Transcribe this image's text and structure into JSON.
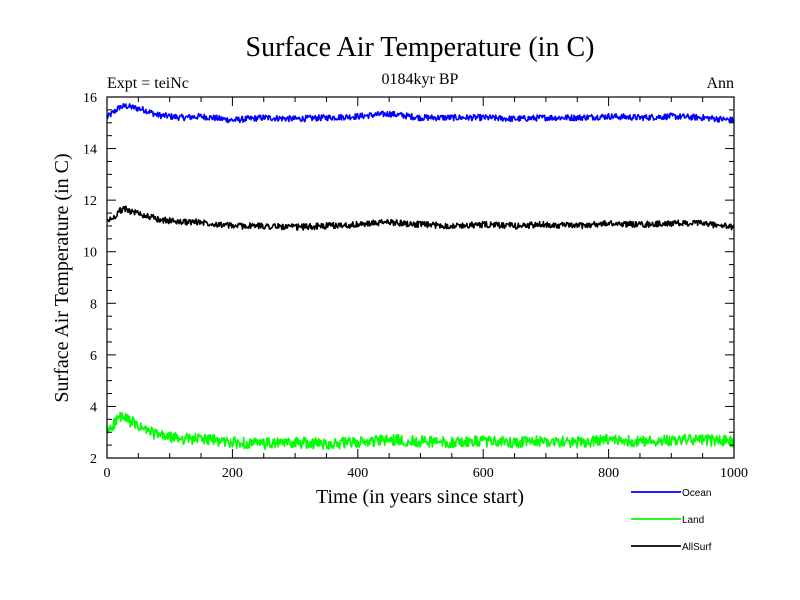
{
  "chart_data": {
    "type": "line",
    "title": "Surface Air Temperature (in C)",
    "subtitle": "0184kyr BP",
    "top_left_label": "Expt = teiNc",
    "top_right_label": "Ann",
    "xlabel": "Time (in years since start)",
    "ylabel": "Surface Air Temperature (in C)",
    "xlim": [
      0,
      1000
    ],
    "ylim": [
      2,
      16
    ],
    "x_major_ticks": [
      0,
      200,
      400,
      600,
      800,
      1000
    ],
    "x_tick_labels": [
      "0",
      "200",
      "400",
      "600",
      "800",
      "1000"
    ],
    "y_major_ticks": [
      2,
      4,
      6,
      8,
      10,
      12,
      14,
      16
    ],
    "y_tick_labels": [
      "2",
      "4",
      "6",
      "8",
      "10",
      "12",
      "14",
      "16"
    ],
    "grid": false,
    "legend_position": "bottom-right, below plot",
    "series": [
      {
        "name": "Ocean",
        "color": "#0000ff",
        "x": [
          0,
          10,
          20,
          30,
          40,
          50,
          60,
          70,
          80,
          100,
          120,
          150,
          200,
          250,
          300,
          350,
          400,
          450,
          500,
          550,
          600,
          650,
          700,
          750,
          800,
          850,
          900,
          950,
          1000
        ],
        "y": [
          15.2,
          15.4,
          15.6,
          15.65,
          15.6,
          15.55,
          15.5,
          15.4,
          15.3,
          15.25,
          15.2,
          15.25,
          15.1,
          15.2,
          15.15,
          15.2,
          15.25,
          15.35,
          15.2,
          15.2,
          15.2,
          15.15,
          15.2,
          15.2,
          15.25,
          15.2,
          15.25,
          15.2,
          15.1
        ]
      },
      {
        "name": "Land",
        "color": "#00ff00",
        "x": [
          0,
          10,
          20,
          30,
          40,
          50,
          60,
          70,
          80,
          100,
          120,
          150,
          200,
          250,
          300,
          350,
          400,
          450,
          500,
          550,
          600,
          650,
          700,
          750,
          800,
          850,
          900,
          950,
          1000
        ],
        "y": [
          3.0,
          3.3,
          3.6,
          3.5,
          3.4,
          3.2,
          3.1,
          3.0,
          2.9,
          2.8,
          2.75,
          2.75,
          2.6,
          2.55,
          2.6,
          2.55,
          2.6,
          2.7,
          2.65,
          2.6,
          2.65,
          2.6,
          2.65,
          2.6,
          2.7,
          2.65,
          2.7,
          2.7,
          2.65
        ]
      },
      {
        "name": "AllSurf",
        "color": "#000000",
        "x": [
          0,
          10,
          20,
          30,
          40,
          50,
          60,
          70,
          80,
          100,
          120,
          150,
          200,
          250,
          300,
          350,
          400,
          450,
          500,
          550,
          600,
          650,
          700,
          750,
          800,
          850,
          900,
          950,
          1000
        ],
        "y": [
          11.2,
          11.3,
          11.6,
          11.65,
          11.55,
          11.5,
          11.4,
          11.35,
          11.25,
          11.2,
          11.15,
          11.15,
          11.0,
          11.0,
          10.95,
          11.0,
          11.05,
          11.15,
          11.05,
          11.0,
          11.05,
          11.0,
          11.05,
          11.0,
          11.1,
          11.05,
          11.1,
          11.1,
          10.95
        ]
      }
    ]
  }
}
